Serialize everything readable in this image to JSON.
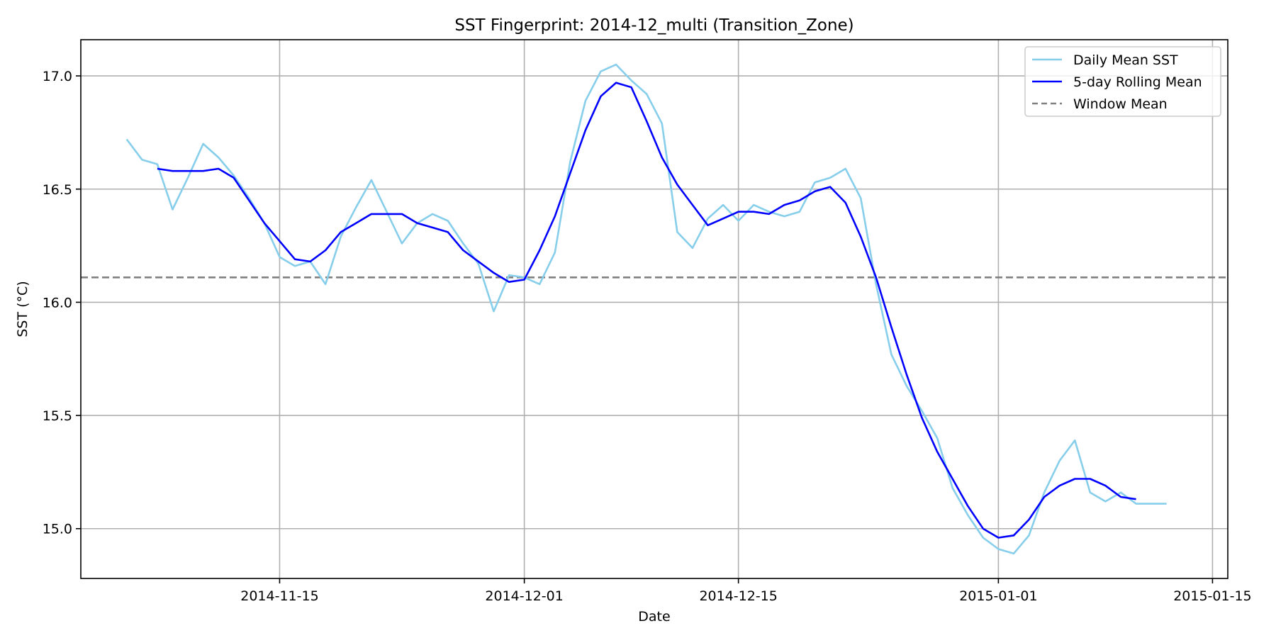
{
  "chart_data": {
    "type": "line",
    "title": "SST Fingerprint: 2014-12_multi (Transition_Zone)",
    "xlabel": "Date",
    "ylabel": "SST (°C)",
    "ylim": [
      14.78,
      17.16
    ],
    "xlim": [
      "2014-11-02",
      "2015-01-16"
    ],
    "grid": true,
    "legend_position": "upper right",
    "x_ticks": [
      "2014-11-15",
      "2014-12-01",
      "2014-12-15",
      "2015-01-01",
      "2015-01-15"
    ],
    "y_ticks": [
      "15.0",
      "15.5",
      "16.0",
      "16.5",
      "17.0"
    ],
    "window_mean": 16.11,
    "series": [
      {
        "name": "Daily Mean SST",
        "color": "#87ceeb",
        "style": "solid",
        "x": [
          "2014-11-05",
          "2014-11-06",
          "2014-11-07",
          "2014-11-08",
          "2014-11-09",
          "2014-11-10",
          "2014-11-11",
          "2014-11-12",
          "2014-11-13",
          "2014-11-14",
          "2014-11-15",
          "2014-11-16",
          "2014-11-17",
          "2014-11-18",
          "2014-11-19",
          "2014-11-20",
          "2014-11-21",
          "2014-11-22",
          "2014-11-23",
          "2014-11-24",
          "2014-11-25",
          "2014-11-26",
          "2014-11-27",
          "2014-11-28",
          "2014-11-29",
          "2014-11-30",
          "2014-12-01",
          "2014-12-02",
          "2014-12-03",
          "2014-12-04",
          "2014-12-05",
          "2014-12-06",
          "2014-12-07",
          "2014-12-08",
          "2014-12-09",
          "2014-12-10",
          "2014-12-11",
          "2014-12-12",
          "2014-12-13",
          "2014-12-14",
          "2014-12-15",
          "2014-12-16",
          "2014-12-17",
          "2014-12-18",
          "2014-12-19",
          "2014-12-20",
          "2014-12-21",
          "2014-12-22",
          "2014-12-23",
          "2014-12-24",
          "2014-12-25",
          "2014-12-26",
          "2014-12-27",
          "2014-12-28",
          "2014-12-29",
          "2014-12-30",
          "2014-12-31",
          "2015-01-01",
          "2015-01-02",
          "2015-01-03",
          "2015-01-04",
          "2015-01-05",
          "2015-01-06",
          "2015-01-07",
          "2015-01-08",
          "2015-01-09",
          "2015-01-10",
          "2015-01-11",
          "2015-01-12"
        ],
        "values": [
          16.72,
          16.63,
          16.61,
          16.41,
          16.55,
          16.7,
          16.64,
          16.56,
          16.46,
          16.35,
          16.2,
          16.16,
          16.18,
          16.08,
          16.29,
          16.42,
          16.54,
          16.4,
          16.26,
          16.35,
          16.39,
          16.36,
          16.26,
          16.17,
          15.96,
          16.12,
          16.11,
          16.08,
          16.22,
          16.62,
          16.89,
          17.02,
          17.05,
          16.98,
          16.92,
          16.79,
          16.31,
          16.24,
          16.37,
          16.43,
          16.36,
          16.43,
          16.4,
          16.38,
          16.4,
          16.53,
          16.55,
          16.59,
          16.46,
          16.08,
          15.77,
          15.63,
          15.52,
          15.4,
          15.18,
          15.06,
          14.96,
          14.91,
          14.89,
          14.97,
          15.16,
          15.3,
          15.39,
          15.16,
          15.12,
          15.16,
          15.11,
          15.11,
          15.11
        ]
      },
      {
        "name": "5-day Rolling Mean",
        "color": "#0000ff",
        "style": "solid",
        "x": [
          "2014-11-07",
          "2014-11-08",
          "2014-11-09",
          "2014-11-10",
          "2014-11-11",
          "2014-11-12",
          "2014-11-13",
          "2014-11-14",
          "2014-11-15",
          "2014-11-16",
          "2014-11-17",
          "2014-11-18",
          "2014-11-19",
          "2014-11-20",
          "2014-11-21",
          "2014-11-22",
          "2014-11-23",
          "2014-11-24",
          "2014-11-25",
          "2014-11-26",
          "2014-11-27",
          "2014-11-28",
          "2014-11-29",
          "2014-11-30",
          "2014-12-01",
          "2014-12-02",
          "2014-12-03",
          "2014-12-04",
          "2014-12-05",
          "2014-12-06",
          "2014-12-07",
          "2014-12-08",
          "2014-12-09",
          "2014-12-10",
          "2014-12-11",
          "2014-12-12",
          "2014-12-13",
          "2014-12-14",
          "2014-12-15",
          "2014-12-16",
          "2014-12-17",
          "2014-12-18",
          "2014-12-19",
          "2014-12-20",
          "2014-12-21",
          "2014-12-22",
          "2014-12-23",
          "2014-12-24",
          "2014-12-25",
          "2014-12-26",
          "2014-12-27",
          "2014-12-28",
          "2014-12-29",
          "2014-12-30",
          "2014-12-31",
          "2015-01-01",
          "2015-01-02",
          "2015-01-03",
          "2015-01-04",
          "2015-01-05",
          "2015-01-06",
          "2015-01-07",
          "2015-01-08",
          "2015-01-09",
          "2015-01-10"
        ],
        "values": [
          16.59,
          16.58,
          16.58,
          16.58,
          16.59,
          16.55,
          16.45,
          16.35,
          16.27,
          16.19,
          16.18,
          16.23,
          16.31,
          16.35,
          16.39,
          16.39,
          16.39,
          16.35,
          16.33,
          16.31,
          16.23,
          16.18,
          16.13,
          16.09,
          16.1,
          16.23,
          16.38,
          16.57,
          16.76,
          16.91,
          16.97,
          16.95,
          16.8,
          16.64,
          16.52,
          16.43,
          16.34,
          16.37,
          16.4,
          16.4,
          16.39,
          16.43,
          16.45,
          16.49,
          16.51,
          16.44,
          16.29,
          16.11,
          15.89,
          15.68,
          15.49,
          15.34,
          15.22,
          15.1,
          15.0,
          14.96,
          14.97,
          15.04,
          15.14,
          15.19,
          15.22,
          15.22,
          15.19,
          15.14,
          15.13
        ]
      }
    ],
    "legend": [
      "Daily Mean SST",
      "5-day Rolling Mean",
      "Window Mean"
    ],
    "reference_lines": [
      {
        "name": "Window Mean",
        "value": 16.11,
        "color": "#808080",
        "style": "dashed"
      }
    ]
  }
}
